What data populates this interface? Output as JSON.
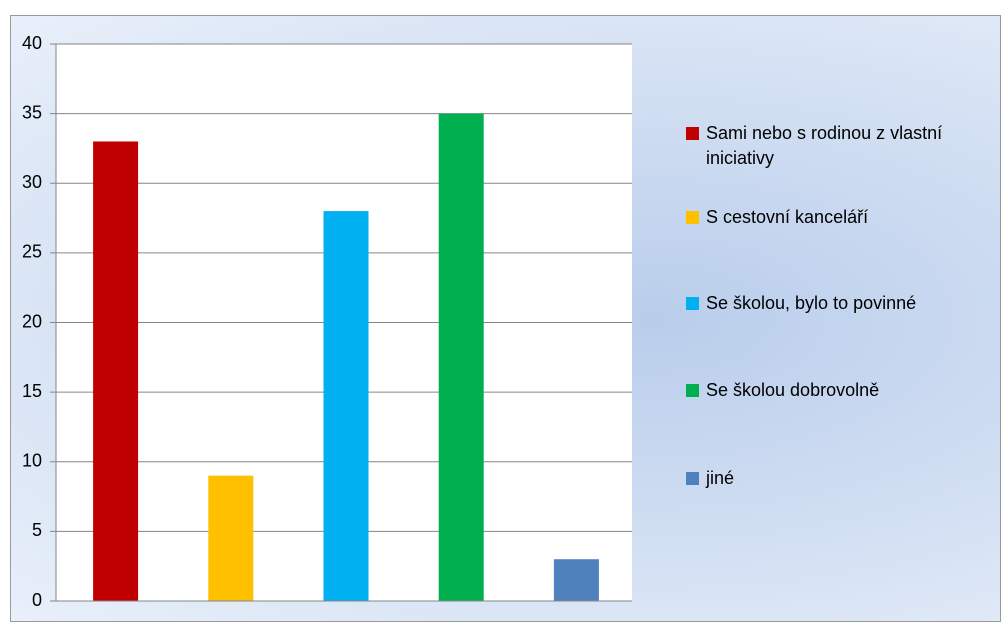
{
  "chart_data": {
    "type": "bar",
    "categories": [
      null
    ],
    "series": [
      {
        "name": "Sami nebo s rodinou z vlastní iniciativy",
        "color": "#c00000",
        "values": [
          33
        ]
      },
      {
        "name": "S cestovní kanceláří",
        "color": "#ffc000",
        "values": [
          9
        ]
      },
      {
        "name": "Se školou, bylo to povinné",
        "color": "#00b0f0",
        "values": [
          28
        ]
      },
      {
        "name": "Se školou dobrovolně",
        "color": "#00b050",
        "values": [
          35
        ]
      },
      {
        "name": "jiné",
        "color": "#4f81bd",
        "values": [
          3
        ]
      }
    ],
    "ylim": [
      0,
      40
    ],
    "yticks": [
      0,
      5,
      10,
      15,
      20,
      25,
      30,
      35,
      40
    ],
    "grid": true,
    "legend": "right"
  }
}
